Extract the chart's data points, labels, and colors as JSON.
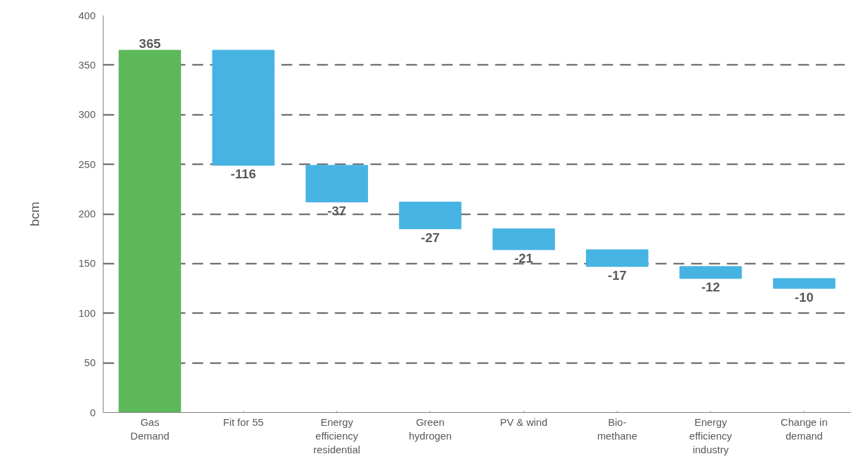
{
  "chart_data": {
    "type": "bar",
    "ylabel": "bcm",
    "categories": [
      "Gas\nDemand",
      "Fit for 55",
      "Energy\nefficiency\nresidential",
      "Green\nhydrogen",
      "PV & wind",
      "Bio-\nmethane",
      "Energy\nefficiency\nindustry",
      "Change in\ndemand"
    ],
    "values": [
      365,
      -116,
      -37,
      -27,
      -21,
      -17,
      -12,
      -10
    ],
    "base": [
      0,
      365,
      249,
      212,
      185,
      164,
      147,
      135
    ],
    "colors": [
      "#5cb85a",
      "#47b3e3",
      "#47b3e3",
      "#47b3e3",
      "#47b3e3",
      "#47b3e3",
      "#47b3e3",
      "#47b3e3"
    ],
    "ylim": [
      0,
      400
    ],
    "yticks": [
      0,
      50,
      100,
      150,
      200,
      250,
      300,
      350,
      400
    ],
    "grid": "y",
    "data_labels": true
  }
}
